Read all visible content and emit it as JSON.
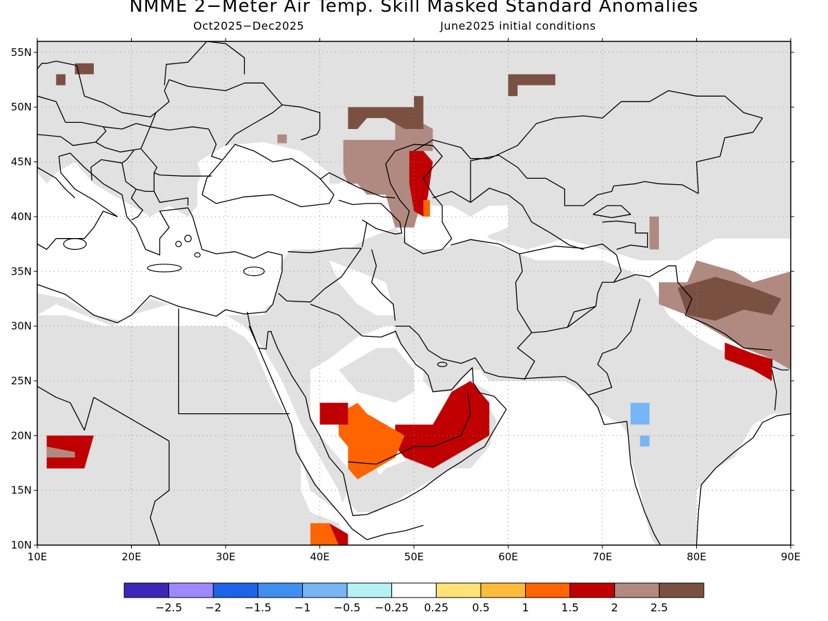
{
  "title": "NMME 2−Meter Air Temp. Skill Masked Standard Anomalies",
  "period": "Oct2025−Dec2025",
  "initial_conditions": "June2025 initial conditions",
  "map": {
    "lon_range": [
      10,
      90
    ],
    "lat_range": [
      10,
      56
    ],
    "lon_ticks": [
      {
        "value": 10,
        "label": "10E"
      },
      {
        "value": 20,
        "label": "20E"
      },
      {
        "value": 30,
        "label": "30E"
      },
      {
        "value": 40,
        "label": "40E"
      },
      {
        "value": 50,
        "label": "50E"
      },
      {
        "value": 60,
        "label": "60E"
      },
      {
        "value": 70,
        "label": "70E"
      },
      {
        "value": 80,
        "label": "80E"
      },
      {
        "value": 90,
        "label": "90E"
      }
    ],
    "lat_ticks": [
      {
        "value": 10,
        "label": "10N"
      },
      {
        "value": 15,
        "label": "15N"
      },
      {
        "value": 20,
        "label": "20N"
      },
      {
        "value": 25,
        "label": "25N"
      },
      {
        "value": 30,
        "label": "30N"
      },
      {
        "value": 35,
        "label": "35N"
      },
      {
        "value": 40,
        "label": "40N"
      },
      {
        "value": 45,
        "label": "45N"
      },
      {
        "value": 50,
        "label": "50N"
      },
      {
        "value": 55,
        "label": "55N"
      }
    ],
    "mask_color": "#e1e1e1",
    "anomaly_regions": [
      {
        "name": "caspian-north",
        "class": 2.0,
        "polygon": [
          [
            42.5,
            47
          ],
          [
            48,
            47
          ],
          [
            48,
            50
          ],
          [
            50,
            49
          ],
          [
            52,
            48
          ],
          [
            52,
            46
          ],
          [
            50,
            46
          ],
          [
            50,
            44
          ],
          [
            51,
            42
          ],
          [
            50,
            39
          ],
          [
            48,
            39
          ],
          [
            47,
            42
          ],
          [
            45,
            42
          ],
          [
            44,
            43
          ],
          [
            43,
            43
          ],
          [
            42.5,
            44
          ]
        ]
      },
      {
        "name": "caspian-east",
        "class": 1.5,
        "polygon": [
          [
            49.5,
            46
          ],
          [
            51,
            46
          ],
          [
            52,
            45
          ],
          [
            51.5,
            42
          ],
          [
            51,
            40
          ],
          [
            50,
            40.5
          ],
          [
            49.5,
            43
          ]
        ]
      },
      {
        "name": "caspian-east-edge",
        "class": 1.0,
        "polygon": [
          [
            51,
            41.5
          ],
          [
            51.7,
            41.5
          ],
          [
            51.7,
            40
          ],
          [
            51,
            40
          ]
        ]
      },
      {
        "name": "ukraine-north",
        "class": 2.5,
        "polygon": [
          [
            43,
            50
          ],
          [
            50,
            50
          ],
          [
            50,
            51
          ],
          [
            51,
            51
          ],
          [
            51,
            48
          ],
          [
            49,
            48
          ],
          [
            47,
            49
          ],
          [
            45,
            49
          ],
          [
            44,
            48
          ],
          [
            43,
            48
          ]
        ]
      },
      {
        "name": "azov",
        "class": 2.0,
        "polygon": [
          [
            35.5,
            47.5
          ],
          [
            36.5,
            47.5
          ],
          [
            36.5,
            46.7
          ],
          [
            35.5,
            46.7
          ]
        ]
      },
      {
        "name": "balkan-north",
        "class": 2.5,
        "polygon": [
          [
            14,
            54
          ],
          [
            16,
            54
          ],
          [
            16,
            53
          ],
          [
            14,
            53
          ]
        ]
      },
      {
        "name": "balkan-west",
        "class": 2.5,
        "polygon": [
          [
            12,
            53
          ],
          [
            13,
            53
          ],
          [
            13,
            52
          ],
          [
            12,
            52
          ]
        ]
      },
      {
        "name": "russia-urals",
        "class": 2.5,
        "polygon": [
          [
            60,
            53
          ],
          [
            65,
            53
          ],
          [
            65,
            52
          ],
          [
            61,
            52
          ],
          [
            61,
            51
          ],
          [
            60,
            51
          ]
        ]
      },
      {
        "name": "hindu-kush",
        "class": 2.0,
        "polygon": [
          [
            75,
            40
          ],
          [
            76,
            40
          ],
          [
            76,
            37
          ],
          [
            75,
            37
          ]
        ]
      },
      {
        "name": "tibet",
        "class": 2.0,
        "polygon": [
          [
            76,
            34
          ],
          [
            79,
            34
          ],
          [
            80,
            36
          ],
          [
            84,
            35
          ],
          [
            86,
            34
          ],
          [
            90,
            35
          ],
          [
            90,
            26
          ],
          [
            88,
            27
          ],
          [
            85,
            28
          ],
          [
            83,
            29
          ],
          [
            81,
            30
          ],
          [
            79,
            31
          ],
          [
            76,
            32
          ]
        ]
      },
      {
        "name": "tibet-west",
        "class": 2.5,
        "polygon": [
          [
            78,
            33.5
          ],
          [
            82,
            34.5
          ],
          [
            86,
            33.5
          ],
          [
            89,
            32.5
          ],
          [
            88,
            31
          ],
          [
            85,
            31.5
          ],
          [
            82,
            30.5
          ],
          [
            79,
            31
          ]
        ]
      },
      {
        "name": "nepal-belt",
        "class": 1.5,
        "polygon": [
          [
            83,
            28.5
          ],
          [
            86,
            27.5
          ],
          [
            88,
            27
          ],
          [
            88,
            25
          ],
          [
            86,
            26
          ],
          [
            83,
            27
          ]
        ]
      },
      {
        "name": "arabia-east",
        "class": 1.5,
        "polygon": [
          [
            48,
            21
          ],
          [
            52,
            21
          ],
          [
            54,
            24
          ],
          [
            56,
            25
          ],
          [
            58,
            23
          ],
          [
            58,
            20
          ],
          [
            56,
            19
          ],
          [
            52,
            17
          ],
          [
            49,
            18
          ],
          [
            48,
            19
          ]
        ]
      },
      {
        "name": "arabia-central",
        "class": 1.0,
        "polygon": [
          [
            42,
            22
          ],
          [
            44,
            23
          ],
          [
            45,
            22
          ],
          [
            47,
            21
          ],
          [
            49,
            20
          ],
          [
            48,
            18
          ],
          [
            46,
            17
          ],
          [
            44,
            16
          ],
          [
            43,
            17
          ],
          [
            43,
            19
          ],
          [
            42,
            20
          ]
        ]
      },
      {
        "name": "arabia-west",
        "class": 1.5,
        "polygon": [
          [
            40,
            23
          ],
          [
            43,
            23
          ],
          [
            43,
            21
          ],
          [
            40,
            21
          ]
        ]
      },
      {
        "name": "sahara-chad",
        "class": 1.5,
        "polygon": [
          [
            11,
            20
          ],
          [
            16,
            20
          ],
          [
            15,
            17
          ],
          [
            11,
            17
          ]
        ]
      },
      {
        "name": "sahara-chad-core",
        "class": 2.0,
        "polygon": [
          [
            11,
            19
          ],
          [
            14,
            18.5
          ],
          [
            14,
            18
          ],
          [
            11,
            18
          ]
        ]
      },
      {
        "name": "eritrea",
        "class": 1.0,
        "polygon": [
          [
            39,
            12
          ],
          [
            41,
            12
          ],
          [
            42,
            10
          ],
          [
            39,
            10
          ]
        ]
      },
      {
        "name": "eritrea-coast",
        "class": 1.5,
        "polygon": [
          [
            41,
            12
          ],
          [
            43,
            11
          ],
          [
            43,
            10
          ],
          [
            42,
            10
          ]
        ]
      },
      {
        "name": "india-west-cool",
        "class": -1.0,
        "polygon": [
          [
            73,
            23
          ],
          [
            75,
            23
          ],
          [
            75,
            21
          ],
          [
            73,
            21
          ]
        ]
      },
      {
        "name": "india-west-cool-2",
        "class": -1.0,
        "polygon": [
          [
            74,
            20
          ],
          [
            75,
            20
          ],
          [
            75,
            19
          ],
          [
            74,
            19
          ]
        ]
      }
    ]
  },
  "colorbar": {
    "colors": [
      "#3b27b8",
      "#9d88ff",
      "#1d62e8",
      "#3f8ff0",
      "#77b5f5",
      "#b6f0f5",
      "#ffffff",
      "#ffe278",
      "#ffbc3c",
      "#ff6400",
      "#c00000",
      "#b08a80",
      "#7a5042"
    ],
    "labels": [
      "−2.5",
      "−2",
      "−1.5",
      "−1",
      "−0.5",
      "−0.25",
      "0.25",
      "0.5",
      "1",
      "1.5",
      "2",
      "2.5"
    ]
  }
}
